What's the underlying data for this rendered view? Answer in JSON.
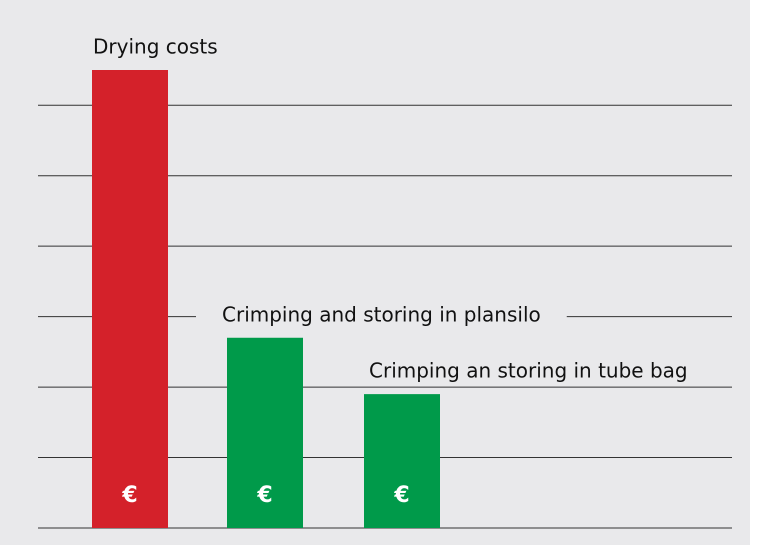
{
  "chart_data": {
    "type": "bar",
    "categories": [
      "Drying costs",
      "Crimping and storing in plansilo",
      "Crimping an storing in tube bag"
    ],
    "values": [
      6.5,
      2.7,
      1.9
    ],
    "bar_labels": [
      "€",
      "€",
      "€"
    ],
    "colors": [
      "#d4212a",
      "#009a4a",
      "#009a4a"
    ],
    "ylim": [
      0,
      6.5
    ],
    "yticks": [
      0,
      1,
      2,
      3,
      4,
      5,
      6
    ],
    "grid": true
  }
}
